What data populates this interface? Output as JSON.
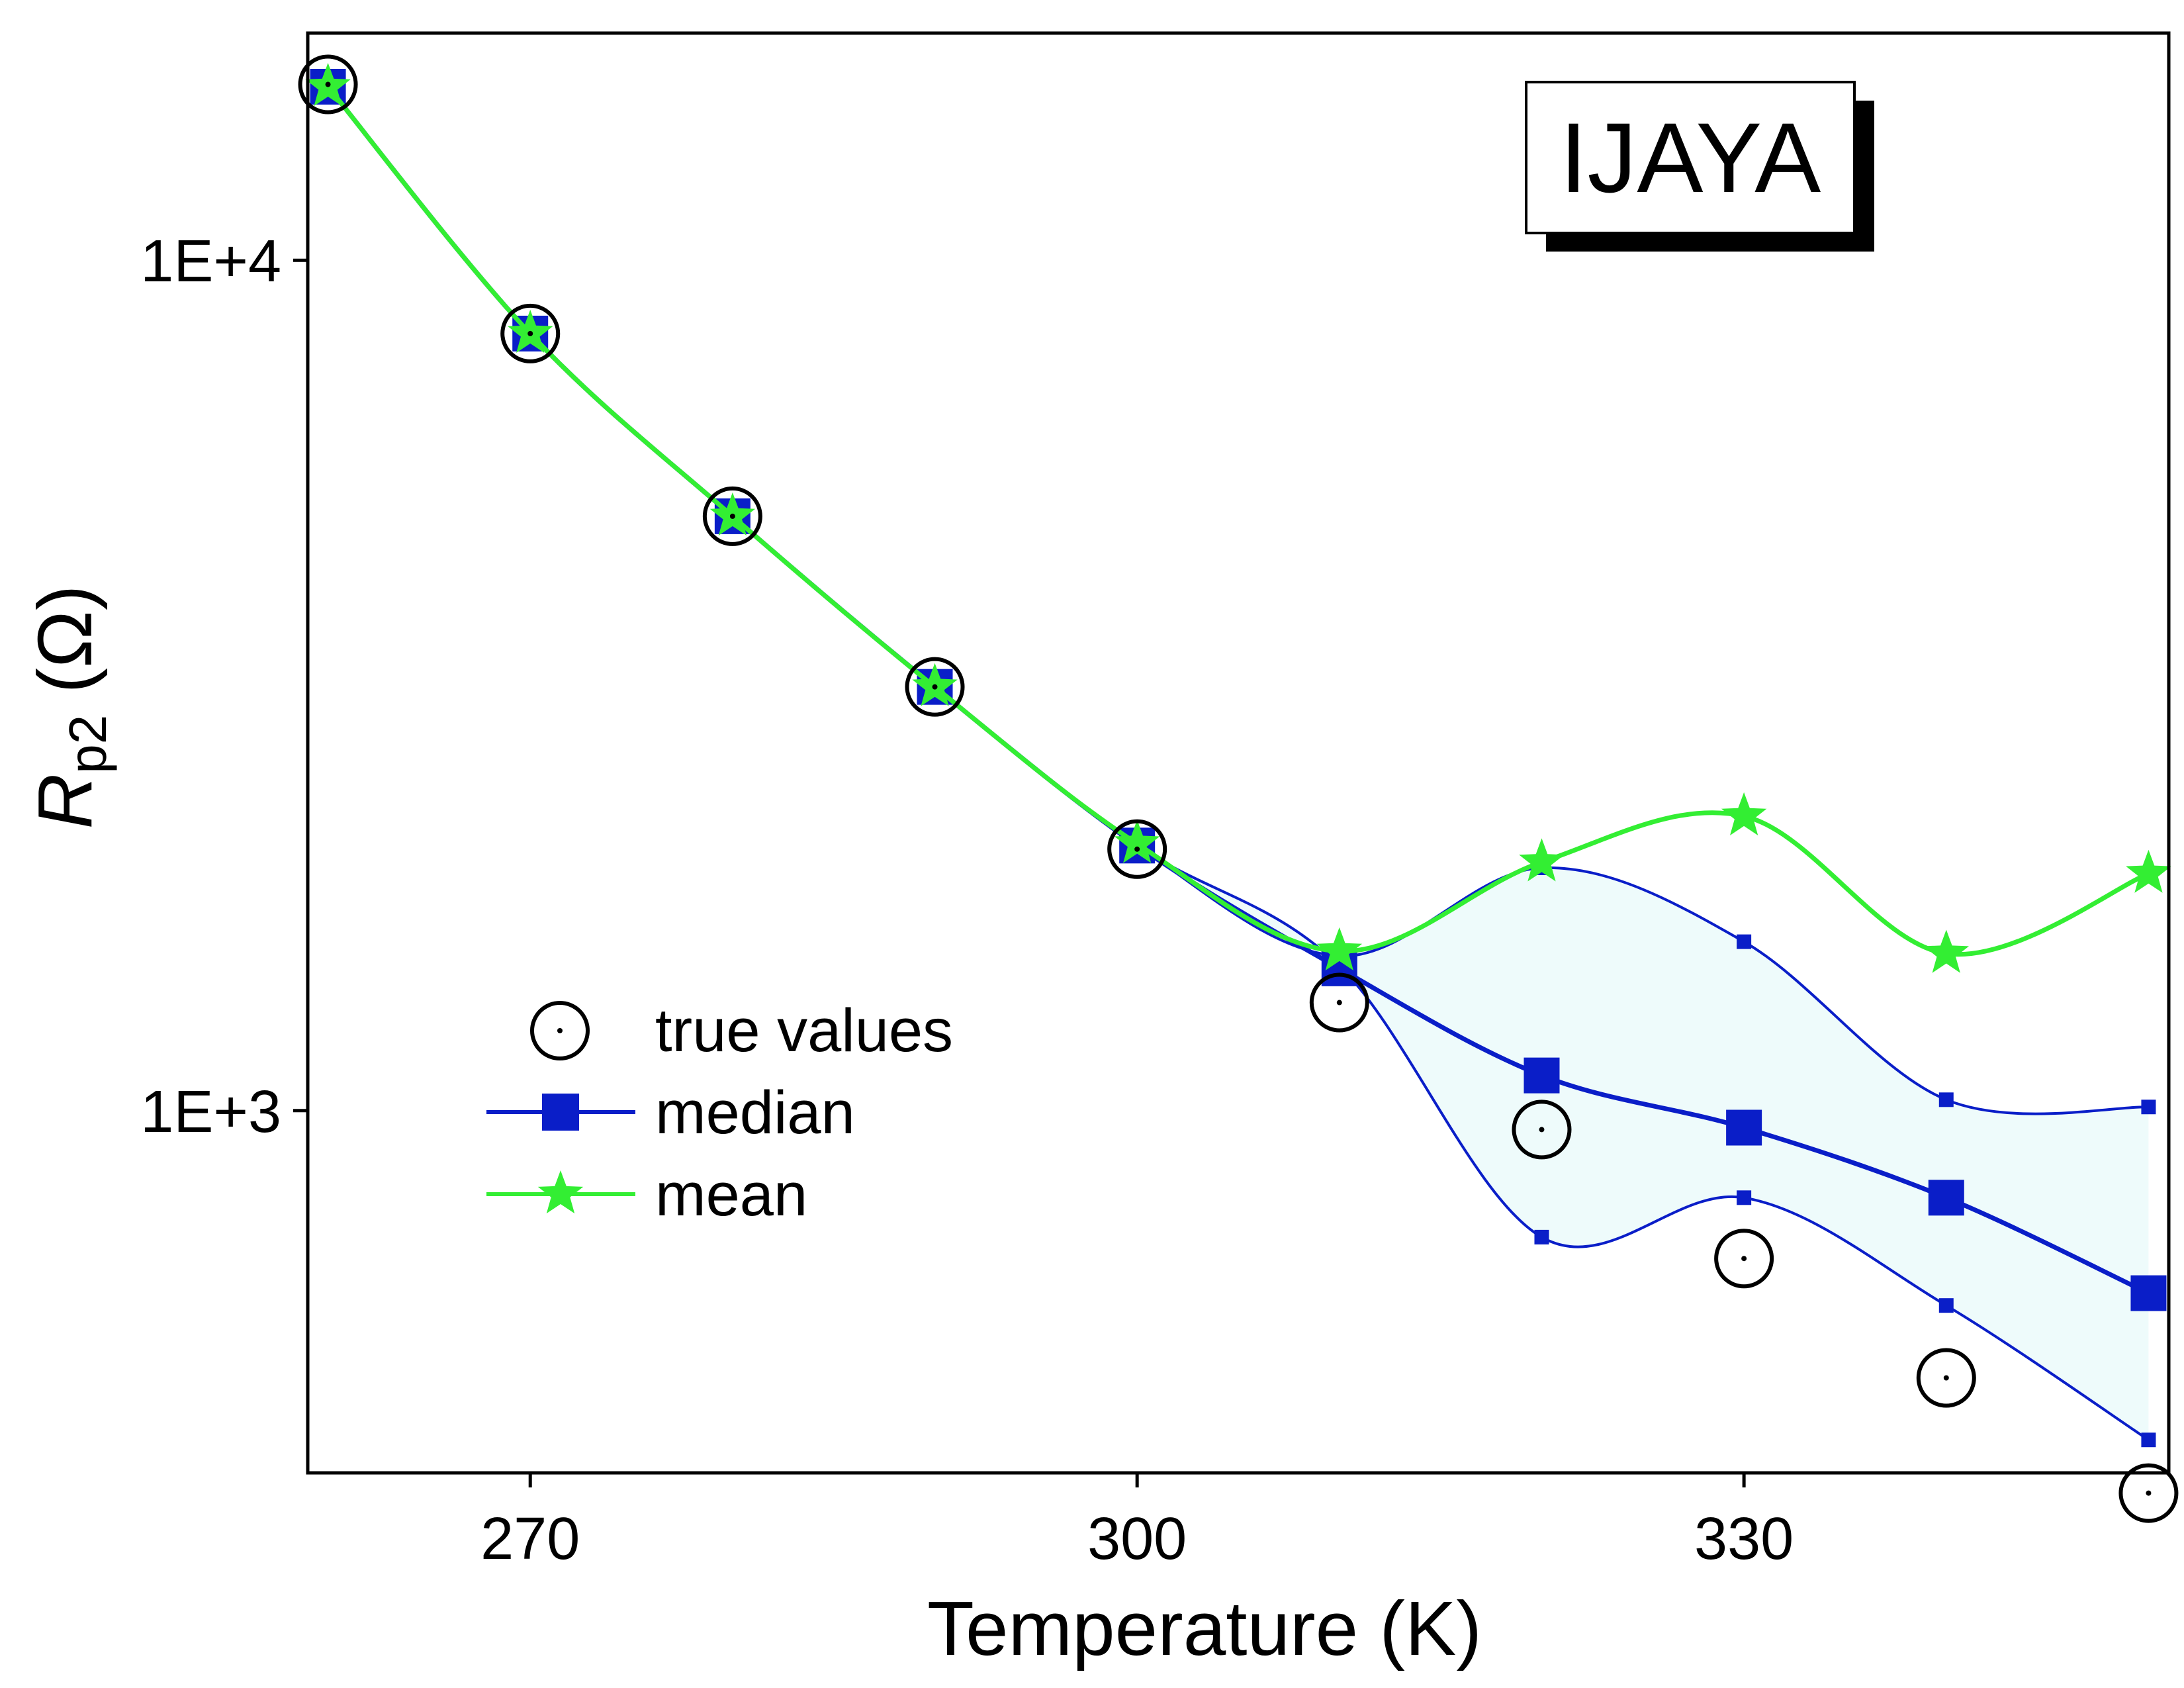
{
  "chart_data": {
    "type": "line",
    "yscale": "log",
    "xlabel": "Temperature (K)",
    "ylabel_main": "R",
    "ylabel_sub": "p2",
    "ylabel_unit": " (Ω)",
    "xlim": [
      259,
      351
    ],
    "ylim": [
      375,
      18500
    ],
    "xticks": [
      270,
      300,
      330
    ],
    "yticks": [
      1000,
      10000
    ],
    "ytick_labels": [
      "1E+3",
      "1E+4"
    ],
    "grid": false,
    "legend_position": "bottom-left",
    "annotation": "IJAYA",
    "x": [
      260,
      270,
      280,
      290,
      300,
      310,
      320,
      330,
      340,
      350
    ],
    "series": [
      {
        "name": "true values",
        "marker": "circle-dot",
        "line": false,
        "values": [
          16100,
          8200,
          5000,
          3150,
          2030,
          1340,
          950,
          670,
          485,
          355
        ]
      },
      {
        "name": "median",
        "marker": "square",
        "line": true,
        "values": [
          16000,
          8200,
          5000,
          3150,
          2050,
          1470,
          1100,
          955,
          790,
          610
        ]
      },
      {
        "name": "mean",
        "marker": "star",
        "line": true,
        "values": [
          16000,
          8200,
          5000,
          3150,
          2060,
          1540,
          1960,
          2220,
          1530,
          1900
        ]
      }
    ],
    "band": {
      "upper": [
        16000,
        8200,
        5000,
        3150,
        2050,
        1520,
        1930,
        1580,
        1030,
        1010
      ],
      "lower": [
        16000,
        8200,
        5000,
        3150,
        2050,
        1480,
        710,
        790,
        590,
        410
      ]
    },
    "colors": {
      "median": "#0a1ec8",
      "band_edge": "#0a1ec8",
      "band_fill": "#eefbfb",
      "mean": "#33ee33",
      "true": "#000000",
      "axes": "#000000"
    }
  }
}
